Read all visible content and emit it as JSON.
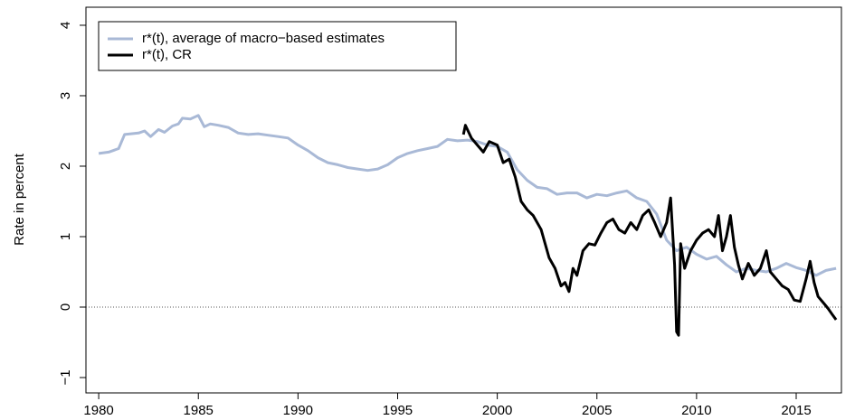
{
  "chart_data": {
    "type": "line",
    "ylabel": "Rate in percent",
    "xlim": [
      1979.36,
      2017.27
    ],
    "ylim": [
      -1.218,
      4.256
    ],
    "xticks": [
      1980,
      1985,
      1990,
      1995,
      2000,
      2005,
      2010,
      2015
    ],
    "yticks": [
      {
        "value": -1,
        "label": "−1"
      },
      0,
      1,
      2,
      3,
      4
    ],
    "hline": 0,
    "legend": "top-left",
    "series": [
      {
        "name": "r*(t), average of macro−based estimates",
        "color": "#a9b9d6",
        "x": [
          1980,
          1980.5,
          1981,
          1981.3,
          1982,
          1982.3,
          1982.6,
          1983,
          1983.3,
          1983.7,
          1984,
          1984.2,
          1984.6,
          1985,
          1985.3,
          1985.6,
          1986,
          1986.5,
          1987,
          1987.5,
          1988,
          1988.5,
          1989,
          1989.5,
          1990,
          1990.5,
          1991,
          1991.5,
          1992,
          1992.5,
          1993,
          1993.5,
          1994,
          1994.5,
          1995,
          1995.5,
          1996,
          1996.5,
          1997,
          1997.5,
          1998,
          1998.5,
          1999,
          1999.5,
          2000,
          2000.5,
          2001,
          2001.5,
          2002,
          2002.5,
          2003,
          2003.5,
          2004,
          2004.5,
          2005,
          2005.5,
          2006,
          2006.5,
          2007,
          2007.5,
          2008,
          2008.5,
          2009,
          2009.5,
          2010,
          2010.5,
          2011,
          2011.5,
          2012,
          2012.5,
          2013,
          2013.5,
          2014,
          2014.5,
          2015,
          2015.5,
          2016,
          2016.5,
          2017
        ],
        "values": [
          2.18,
          2.2,
          2.25,
          2.45,
          2.47,
          2.5,
          2.42,
          2.52,
          2.48,
          2.57,
          2.6,
          2.68,
          2.67,
          2.72,
          2.56,
          2.6,
          2.58,
          2.55,
          2.47,
          2.45,
          2.46,
          2.44,
          2.42,
          2.4,
          2.3,
          2.22,
          2.12,
          2.05,
          2.02,
          1.98,
          1.96,
          1.94,
          1.96,
          2.02,
          2.12,
          2.18,
          2.22,
          2.25,
          2.28,
          2.38,
          2.36,
          2.37,
          2.35,
          2.3,
          2.28,
          2.2,
          1.95,
          1.8,
          1.7,
          1.68,
          1.6,
          1.62,
          1.62,
          1.55,
          1.6,
          1.58,
          1.62,
          1.65,
          1.55,
          1.5,
          1.32,
          0.95,
          0.8,
          0.85,
          0.75,
          0.68,
          0.72,
          0.6,
          0.5,
          0.55,
          0.52,
          0.5,
          0.55,
          0.62,
          0.56,
          0.52,
          0.45,
          0.52,
          0.55
        ]
      },
      {
        "name": "r*(t), CR",
        "color": "#000000",
        "x": [
          1998.3,
          1998.4,
          1998.7,
          1999,
          1999.3,
          1999.6,
          2000,
          2000.3,
          2000.6,
          2000.9,
          2001.2,
          2001.5,
          2001.8,
          2002.2,
          2002.6,
          2002.9,
          2003.2,
          2003.4,
          2003.6,
          2003.8,
          2004,
          2004.3,
          2004.6,
          2004.9,
          2005.2,
          2005.5,
          2005.8,
          2006.1,
          2006.4,
          2006.7,
          2007,
          2007.3,
          2007.6,
          2007.9,
          2008.2,
          2008.5,
          2008.7,
          2008.9,
          2009.0,
          2009.1,
          2009.2,
          2009.4,
          2009.7,
          2010,
          2010.3,
          2010.6,
          2010.9,
          2011.1,
          2011.3,
          2011.5,
          2011.7,
          2011.9,
          2012.1,
          2012.3,
          2012.6,
          2012.9,
          2013.2,
          2013.5,
          2013.7,
          2014,
          2014.3,
          2014.6,
          2014.9,
          2015.2,
          2015.5,
          2015.7,
          2015.9,
          2016.1,
          2016.4,
          2016.6,
          2016.8,
          2017
        ],
        "values": [
          2.45,
          2.58,
          2.4,
          2.3,
          2.2,
          2.35,
          2.3,
          2.05,
          2.1,
          1.85,
          1.5,
          1.38,
          1.3,
          1.1,
          0.7,
          0.55,
          0.3,
          0.35,
          0.22,
          0.55,
          0.45,
          0.8,
          0.9,
          0.88,
          1.05,
          1.2,
          1.25,
          1.1,
          1.05,
          1.2,
          1.1,
          1.3,
          1.38,
          1.2,
          1.0,
          1.2,
          1.55,
          0.6,
          -0.35,
          -0.4,
          0.9,
          0.55,
          0.8,
          0.95,
          1.05,
          1.1,
          1.0,
          1.3,
          0.8,
          1.0,
          1.3,
          0.85,
          0.6,
          0.4,
          0.62,
          0.45,
          0.55,
          0.8,
          0.5,
          0.4,
          0.3,
          0.25,
          0.1,
          0.08,
          0.4,
          0.65,
          0.35,
          0.15,
          0.05,
          -0.02,
          -0.1,
          -0.18
        ]
      }
    ]
  }
}
